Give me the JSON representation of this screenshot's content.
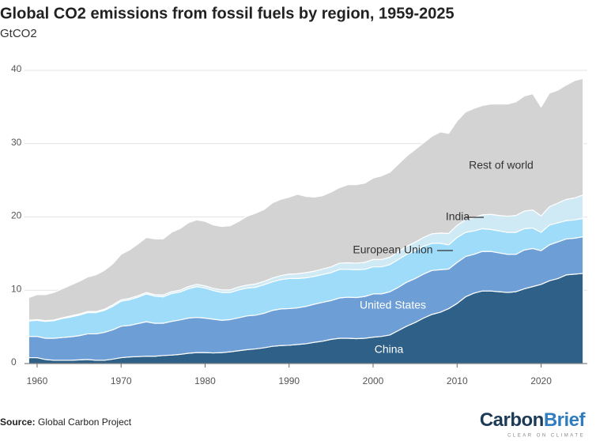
{
  "chart_data": {
    "type": "stacked-area",
    "title": "Global CO2 emissions from fossil fuels by region, 1959-2025",
    "subtitle": "GtCO2",
    "source_label": "Source:",
    "source": "Global Carbon Project",
    "logo": [
      "Carbon",
      "Brief"
    ],
    "logo_tagline": "CLEAR ON CLIMATE",
    "xlim": [
      1958.5,
      2025.5
    ],
    "xticks": [
      1960,
      1970,
      1980,
      1990,
      2000,
      2010,
      2020
    ],
    "ylim": [
      0,
      40
    ],
    "yticks": [
      0,
      10,
      20,
      30,
      40
    ],
    "grid": true,
    "x": [
      1959,
      1960,
      1961,
      1962,
      1963,
      1964,
      1965,
      1966,
      1967,
      1968,
      1969,
      1970,
      1971,
      1972,
      1973,
      1974,
      1975,
      1976,
      1977,
      1978,
      1979,
      1980,
      1981,
      1982,
      1983,
      1984,
      1985,
      1986,
      1987,
      1988,
      1989,
      1990,
      1991,
      1992,
      1993,
      1994,
      1995,
      1996,
      1997,
      1998,
      1999,
      2000,
      2001,
      2002,
      2003,
      2004,
      2005,
      2006,
      2007,
      2008,
      2009,
      2010,
      2011,
      2012,
      2013,
      2014,
      2015,
      2016,
      2017,
      2018,
      2019,
      2020,
      2021,
      2022,
      2023,
      2024,
      2025
    ],
    "series": [
      {
        "name": "China",
        "color": "#2e6088",
        "values": [
          0.8,
          0.8,
          0.55,
          0.45,
          0.45,
          0.45,
          0.5,
          0.55,
          0.45,
          0.45,
          0.6,
          0.8,
          0.9,
          0.95,
          1.0,
          1.0,
          1.1,
          1.15,
          1.25,
          1.4,
          1.5,
          1.5,
          1.45,
          1.5,
          1.6,
          1.75,
          1.9,
          2.0,
          2.15,
          2.35,
          2.45,
          2.5,
          2.6,
          2.7,
          2.9,
          3.05,
          3.3,
          3.45,
          3.45,
          3.4,
          3.45,
          3.6,
          3.7,
          3.9,
          4.5,
          5.1,
          5.6,
          6.2,
          6.7,
          7.0,
          7.5,
          8.2,
          9.1,
          9.6,
          9.9,
          9.9,
          9.8,
          9.7,
          9.8,
          10.2,
          10.5,
          10.8,
          11.3,
          11.6,
          12.1,
          12.2,
          12.3
        ]
      },
      {
        "name": "United States",
        "color": "#6d9fd6",
        "values": [
          2.9,
          2.9,
          2.9,
          3.0,
          3.1,
          3.2,
          3.3,
          3.5,
          3.6,
          3.8,
          4.0,
          4.3,
          4.3,
          4.5,
          4.7,
          4.5,
          4.4,
          4.6,
          4.7,
          4.8,
          4.8,
          4.7,
          4.6,
          4.4,
          4.4,
          4.5,
          4.6,
          4.6,
          4.7,
          4.9,
          5.0,
          5.0,
          5.0,
          5.1,
          5.2,
          5.3,
          5.3,
          5.5,
          5.6,
          5.6,
          5.7,
          5.9,
          5.8,
          5.9,
          5.9,
          6.0,
          6.0,
          6.0,
          6.0,
          5.8,
          5.4,
          5.6,
          5.5,
          5.3,
          5.4,
          5.4,
          5.3,
          5.2,
          5.1,
          5.3,
          5.2,
          4.6,
          4.9,
          5.0,
          4.9,
          4.9,
          5.0
        ]
      },
      {
        "name": "European Union",
        "color": "#9edcfa",
        "values": [
          2.1,
          2.2,
          2.3,
          2.4,
          2.6,
          2.7,
          2.8,
          2.9,
          2.9,
          3.0,
          3.2,
          3.4,
          3.5,
          3.6,
          3.8,
          3.7,
          3.6,
          3.8,
          3.8,
          4.0,
          4.2,
          4.1,
          3.9,
          3.8,
          3.7,
          3.8,
          3.8,
          3.8,
          3.9,
          3.9,
          4.0,
          4.1,
          4.0,
          3.9,
          3.8,
          3.8,
          3.8,
          3.9,
          3.8,
          3.8,
          3.7,
          3.7,
          3.7,
          3.7,
          3.8,
          3.8,
          3.8,
          3.8,
          3.7,
          3.6,
          3.3,
          3.4,
          3.3,
          3.2,
          3.1,
          3.0,
          3.0,
          3.0,
          3.0,
          2.9,
          2.8,
          2.5,
          2.7,
          2.6,
          2.5,
          2.5,
          2.5
        ]
      },
      {
        "name": "India",
        "color": "#cfe9f5",
        "values": [
          0.1,
          0.1,
          0.1,
          0.1,
          0.1,
          0.15,
          0.15,
          0.15,
          0.15,
          0.15,
          0.2,
          0.2,
          0.2,
          0.2,
          0.2,
          0.2,
          0.25,
          0.25,
          0.25,
          0.3,
          0.3,
          0.3,
          0.3,
          0.35,
          0.35,
          0.4,
          0.4,
          0.45,
          0.45,
          0.5,
          0.55,
          0.6,
          0.65,
          0.7,
          0.7,
          0.75,
          0.8,
          0.85,
          0.9,
          0.9,
          0.95,
          1.0,
          1.0,
          1.0,
          1.05,
          1.1,
          1.15,
          1.2,
          1.3,
          1.4,
          1.55,
          1.65,
          1.7,
          1.8,
          1.9,
          2.05,
          2.1,
          2.2,
          2.3,
          2.4,
          2.45,
          2.25,
          2.5,
          2.7,
          2.9,
          3.0,
          3.2
        ]
      },
      {
        "name": "Rest of world",
        "color": "#d3d3d3",
        "values": [
          3.1,
          3.4,
          3.55,
          3.75,
          3.95,
          4.2,
          4.45,
          4.7,
          5.0,
          5.3,
          5.6,
          6.2,
          6.6,
          7.05,
          7.5,
          7.6,
          7.65,
          8.1,
          8.4,
          8.7,
          8.8,
          8.8,
          8.65,
          8.65,
          8.75,
          8.95,
          9.4,
          9.65,
          9.8,
          10.25,
          10.4,
          10.5,
          10.85,
          10.4,
          10.1,
          10.0,
          10.2,
          10.3,
          10.65,
          10.7,
          10.8,
          11.1,
          11.4,
          11.6,
          11.95,
          12.3,
          12.65,
          12.9,
          13.3,
          13.8,
          13.65,
          14.25,
          14.7,
          14.9,
          14.9,
          15.05,
          15.2,
          15.3,
          15.5,
          15.7,
          15.85,
          14.85,
          15.5,
          15.4,
          15.6,
          16.0,
          15.9
        ]
      }
    ]
  }
}
